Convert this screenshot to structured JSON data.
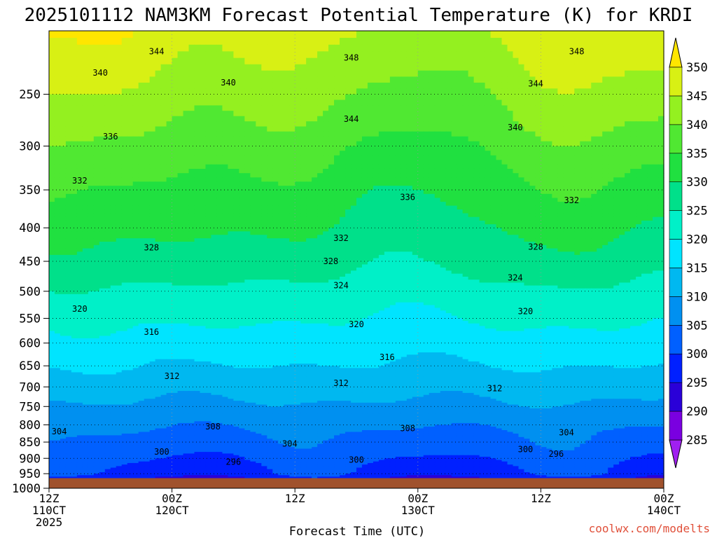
{
  "chart_data": {
    "type": "heatmap",
    "title": "2025101112 NAM3KM Forecast Potential Temperature (K) for KRDI",
    "xlabel": "Forecast Time (UTC)",
    "ylabel": "",
    "x_ticks": [
      {
        "hour": 0,
        "line1": "12Z",
        "line2": "110CT",
        "line3": "2025"
      },
      {
        "hour": 12,
        "line1": "00Z",
        "line2": "120CT",
        "line3": ""
      },
      {
        "hour": 24,
        "line1": "12Z",
        "line2": "",
        "line3": ""
      },
      {
        "hour": 36,
        "line1": "00Z",
        "line2": "130CT",
        "line3": ""
      },
      {
        "hour": 48,
        "line1": "12Z",
        "line2": "",
        "line3": ""
      },
      {
        "hour": 60,
        "line1": "00Z",
        "line2": "140CT",
        "line3": ""
      }
    ],
    "xlim": [
      0,
      60
    ],
    "y_ticks": [
      250,
      300,
      350,
      400,
      450,
      500,
      550,
      600,
      650,
      700,
      750,
      800,
      850,
      900,
      950,
      1000
    ],
    "ylim": [
      1000,
      200
    ],
    "ground_pressure": 965,
    "colorbar": {
      "levels": [
        285,
        290,
        295,
        300,
        305,
        310,
        315,
        320,
        325,
        330,
        335,
        340,
        345,
        350
      ],
      "colors": [
        "#a020f0",
        "#7a00e0",
        "#2a00d8",
        "#0020ff",
        "#0060ff",
        "#0090f0",
        "#00b8f0",
        "#00e4ff",
        "#00f0c8",
        "#00e08a",
        "#20e040",
        "#50e832",
        "#94f020",
        "#d8f014",
        "#ffe600"
      ],
      "ground_color": "#a0522d"
    },
    "contour_labels": [
      {
        "text": "344",
        "hour": 10.5,
        "p": 215
      },
      {
        "text": "348",
        "hour": 29.5,
        "p": 220
      },
      {
        "text": "348",
        "hour": 51.5,
        "p": 215
      },
      {
        "text": "340",
        "hour": 5,
        "p": 232
      },
      {
        "text": "344",
        "hour": 47.5,
        "p": 241
      },
      {
        "text": "340",
        "hour": 17.5,
        "p": 240
      },
      {
        "text": "344",
        "hour": 29.5,
        "p": 273
      },
      {
        "text": "340",
        "hour": 45.5,
        "p": 281
      },
      {
        "text": "336",
        "hour": 6,
        "p": 290
      },
      {
        "text": "332",
        "hour": 3,
        "p": 339
      },
      {
        "text": "336",
        "hour": 35,
        "p": 359
      },
      {
        "text": "332",
        "hour": 51,
        "p": 363
      },
      {
        "text": "332",
        "hour": 28.5,
        "p": 415
      },
      {
        "text": "328",
        "hour": 10,
        "p": 429
      },
      {
        "text": "328",
        "hour": 47.5,
        "p": 428
      },
      {
        "text": "328",
        "hour": 27.5,
        "p": 450
      },
      {
        "text": "324",
        "hour": 45.5,
        "p": 477
      },
      {
        "text": "324",
        "hour": 28.5,
        "p": 490
      },
      {
        "text": "320",
        "hour": 3,
        "p": 532
      },
      {
        "text": "320",
        "hour": 46.5,
        "p": 537
      },
      {
        "text": "320",
        "hour": 30,
        "p": 562
      },
      {
        "text": "316",
        "hour": 10,
        "p": 577
      },
      {
        "text": "316",
        "hour": 33,
        "p": 631
      },
      {
        "text": "312",
        "hour": 12,
        "p": 674
      },
      {
        "text": "312",
        "hour": 28.5,
        "p": 691
      },
      {
        "text": "312",
        "hour": 43.5,
        "p": 704
      },
      {
        "text": "308",
        "hour": 16,
        "p": 805
      },
      {
        "text": "308",
        "hour": 35,
        "p": 810
      },
      {
        "text": "304",
        "hour": 1,
        "p": 819
      },
      {
        "text": "304",
        "hour": 50.5,
        "p": 822
      },
      {
        "text": "304",
        "hour": 23.5,
        "p": 855
      },
      {
        "text": "300",
        "hour": 11,
        "p": 880
      },
      {
        "text": "300",
        "hour": 46.5,
        "p": 872
      },
      {
        "text": "296",
        "hour": 49.5,
        "p": 886
      },
      {
        "text": "300",
        "hour": 30,
        "p": 905
      },
      {
        "text": "296",
        "hour": 18,
        "p": 912
      }
    ],
    "credit": "coolwx.com/modelts"
  }
}
